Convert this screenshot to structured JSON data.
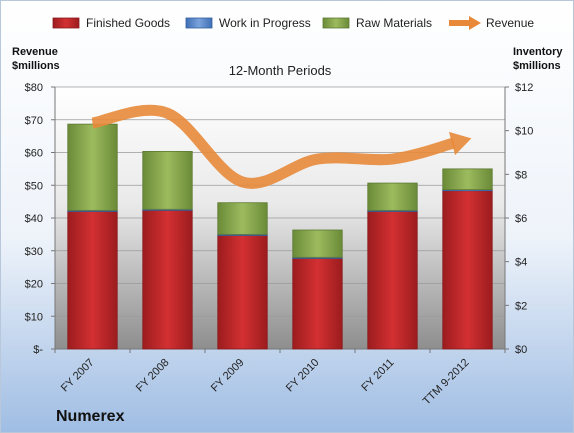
{
  "chart_data": {
    "type": "bar",
    "stacked": true,
    "title": "12-Month Periods",
    "company": "Numerex",
    "categories": [
      "FY 2007",
      "FY 2008",
      "FY 2009",
      "FY 2010",
      "FY 2011",
      "TTM 9-2012"
    ],
    "series": [
      {
        "name": "Finished Goods",
        "axis": "right",
        "color": "#c0282a",
        "values": [
          6.3,
          6.35,
          5.2,
          4.15,
          6.3,
          7.25
        ]
      },
      {
        "name": "Work in Progress",
        "axis": "right",
        "color": "#5b87c9",
        "values": [
          0.05,
          0.05,
          0.05,
          0.05,
          0.05,
          0.05
        ]
      },
      {
        "name": "Raw Materials",
        "axis": "right",
        "color": "#8dab52",
        "values": [
          3.95,
          2.65,
          1.45,
          1.25,
          1.25,
          0.95
        ]
      },
      {
        "name": "Revenue",
        "type": "line",
        "axis": "left",
        "color": "#e8893a",
        "values": [
          69,
          72,
          51,
          58,
          58,
          64
        ]
      }
    ],
    "left_axis": {
      "label_line1": "Revenue",
      "label_line2": "$millions",
      "min": 0,
      "max": 80,
      "step": 10,
      "tick_labels": [
        "$-",
        "$10",
        "$20",
        "$30",
        "$40",
        "$50",
        "$60",
        "$70",
        "$80"
      ]
    },
    "right_axis": {
      "label_line1": "Inventory",
      "label_line2": "$millions",
      "min": 0,
      "max": 12,
      "step": 2,
      "tick_labels": [
        "$0",
        "$2",
        "$4",
        "$6",
        "$8",
        "$10",
        "$12"
      ]
    },
    "grid": true,
    "legend": "top"
  }
}
